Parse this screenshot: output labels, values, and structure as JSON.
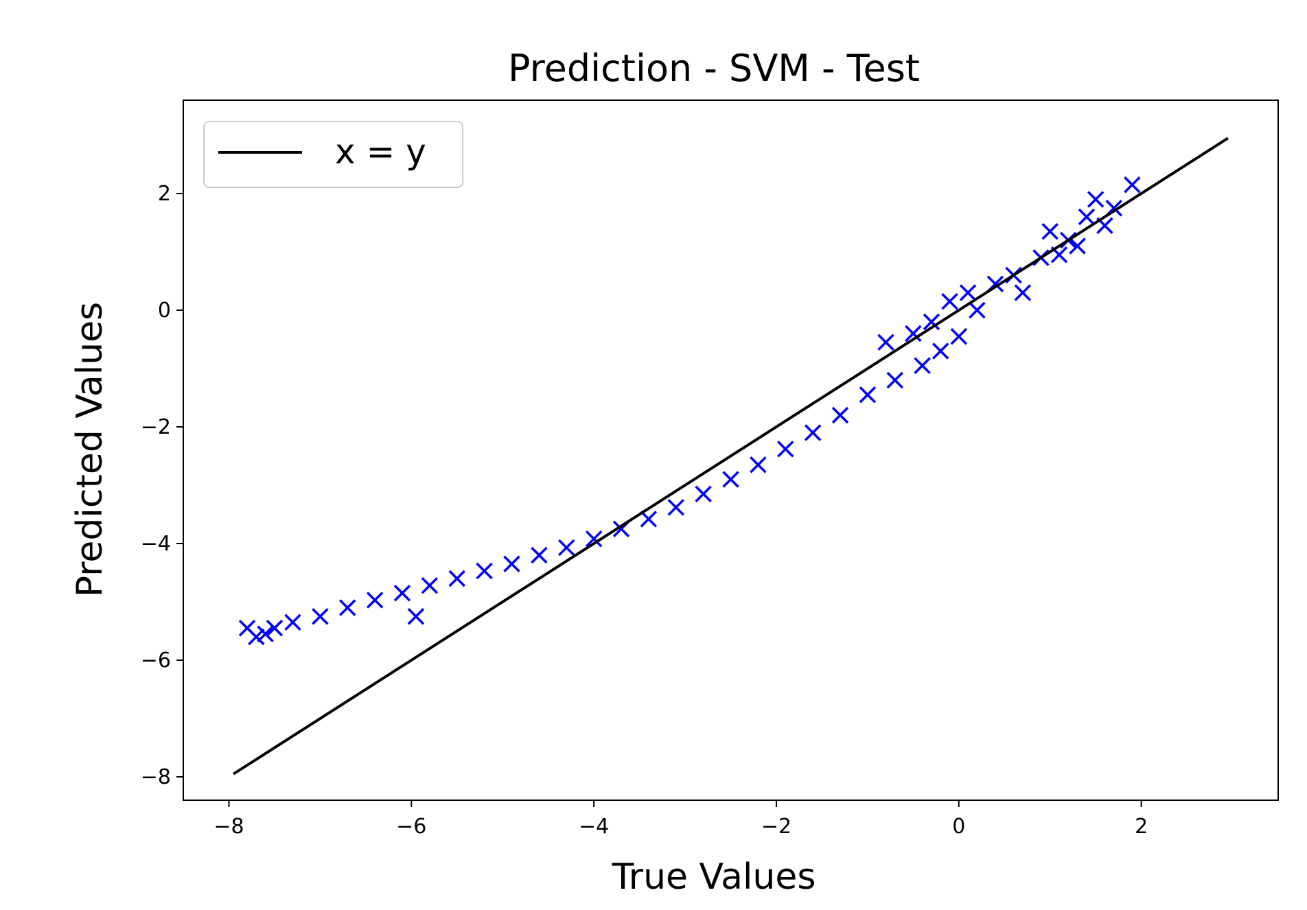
{
  "chart_data": {
    "type": "scatter",
    "title": "Prediction - SVM - Test",
    "xlabel": "True Values",
    "ylabel": "Predicted Values",
    "xlim": [
      -8.5,
      3.5
    ],
    "ylim": [
      -8.4,
      3.6
    ],
    "xticks": [
      -8,
      -6,
      -4,
      -2,
      0,
      2
    ],
    "yticks": [
      -8,
      -6,
      -4,
      -2,
      0,
      2
    ],
    "xtick_labels": [
      "−8",
      "−6",
      "−4",
      "−2",
      "0",
      "2"
    ],
    "ytick_labels": [
      "−8",
      "−6",
      "−4",
      "−2",
      "0",
      "2"
    ],
    "grid": false,
    "legend": {
      "position": "top-left",
      "entries": [
        "x = y"
      ]
    },
    "colors": {
      "scatter": "#0000ff",
      "line": "#000000"
    },
    "series": [
      {
        "kind": "scatter",
        "marker": "x",
        "points": [
          [
            -7.8,
            -5.45
          ],
          [
            -7.7,
            -5.6
          ],
          [
            -7.6,
            -5.55
          ],
          [
            -7.5,
            -5.45
          ],
          [
            -7.3,
            -5.35
          ],
          [
            -7.0,
            -5.25
          ],
          [
            -6.7,
            -5.1
          ],
          [
            -6.4,
            -4.97
          ],
          [
            -6.1,
            -4.85
          ],
          [
            -5.95,
            -5.25
          ],
          [
            -5.8,
            -4.72
          ],
          [
            -5.5,
            -4.6
          ],
          [
            -5.2,
            -4.47
          ],
          [
            -4.9,
            -4.35
          ],
          [
            -4.6,
            -4.2
          ],
          [
            -4.3,
            -4.07
          ],
          [
            -4.0,
            -3.92
          ],
          [
            -3.7,
            -3.75
          ],
          [
            -3.4,
            -3.58
          ],
          [
            -3.1,
            -3.38
          ],
          [
            -2.8,
            -3.15
          ],
          [
            -2.5,
            -2.9
          ],
          [
            -2.2,
            -2.65
          ],
          [
            -1.9,
            -2.38
          ],
          [
            -1.6,
            -2.1
          ],
          [
            -1.3,
            -1.8
          ],
          [
            -1.0,
            -1.45
          ],
          [
            -0.8,
            -0.55
          ],
          [
            -0.7,
            -1.2
          ],
          [
            -0.5,
            -0.4
          ],
          [
            -0.4,
            -0.95
          ],
          [
            -0.3,
            -0.2
          ],
          [
            -0.2,
            -0.7
          ],
          [
            -0.1,
            0.15
          ],
          [
            0.0,
            -0.45
          ],
          [
            0.1,
            0.3
          ],
          [
            0.2,
            0.0
          ],
          [
            0.4,
            0.45
          ],
          [
            0.6,
            0.6
          ],
          [
            0.7,
            0.3
          ],
          [
            0.9,
            0.9
          ],
          [
            1.0,
            1.35
          ],
          [
            1.1,
            0.95
          ],
          [
            1.2,
            1.2
          ],
          [
            1.3,
            1.1
          ],
          [
            1.4,
            1.6
          ],
          [
            1.5,
            1.9
          ],
          [
            1.6,
            1.45
          ],
          [
            1.7,
            1.75
          ],
          [
            1.9,
            2.15
          ]
        ]
      },
      {
        "kind": "line",
        "name": "x = y",
        "points": [
          [
            -7.95,
            -7.95
          ],
          [
            2.95,
            2.95
          ]
        ]
      }
    ]
  }
}
